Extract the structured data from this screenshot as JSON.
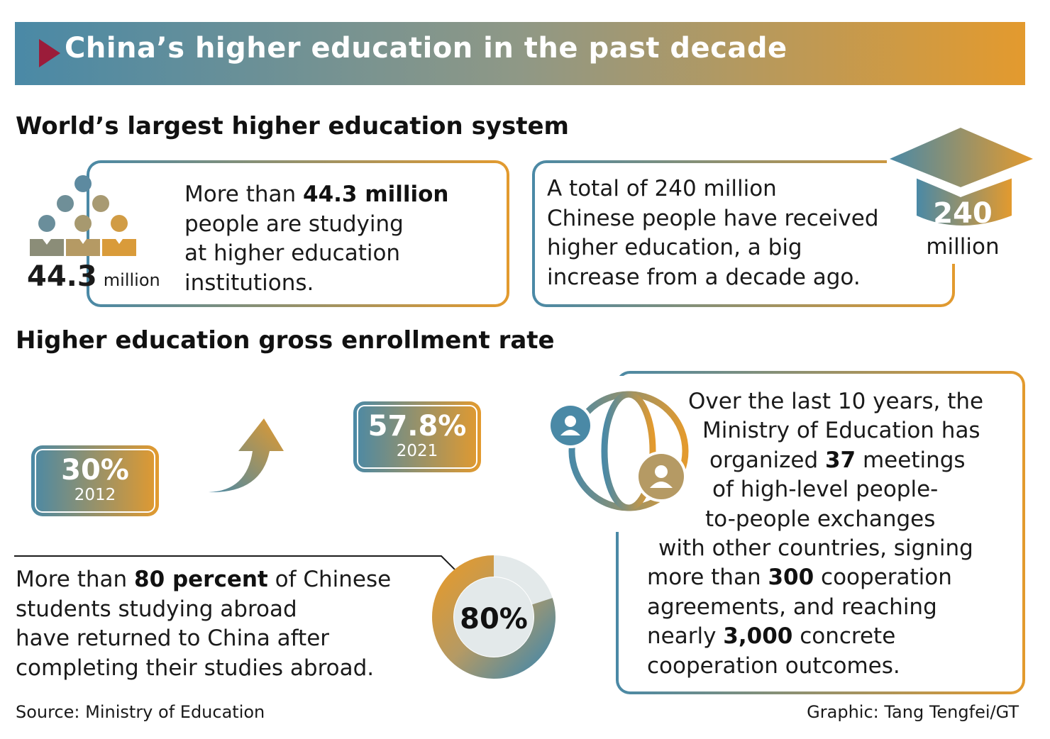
{
  "header": {
    "title": "China’s higher education in the past decade"
  },
  "section1": {
    "heading": "World’s largest higher education system",
    "card_students": {
      "stat_value": "44.3",
      "stat_unit": "million",
      "line1_pre": "More than ",
      "line1_bold": "44.3 million",
      "line2": "people are studying",
      "line3": "at higher education",
      "line4": "institutions."
    },
    "card_graduates": {
      "line1": "A total of 240 million",
      "line2": "Chinese people have received",
      "line3": "higher education, a big",
      "line4": "increase from a decade ago.",
      "cap_value": "240",
      "cap_unit": "million"
    }
  },
  "section2": {
    "heading": "Higher education gross enrollment rate",
    "rate_2012": {
      "value": "30%",
      "year": "2012"
    },
    "rate_2021": {
      "value": "57.8%",
      "year": "2021"
    },
    "returnees": {
      "line1_pre": "More than ",
      "line1_bold": "80 percent",
      "line1_post": " of Chinese",
      "line2": "students studying abroad",
      "line3": "have returned to China after",
      "line4": "completing their studies abroad.",
      "donut_label": "80%",
      "donut_fraction": 0.8
    },
    "exchanges": {
      "l1": "Over the last 10 years, the",
      "l2": "Ministry of Education has",
      "l3_pre": "organized ",
      "l3_bold": "37",
      "l3_post": " meetings",
      "l4": "of high-level people-",
      "l5": "to-people exchanges",
      "l6": "with other countries, signing",
      "l7_pre": "more than ",
      "l7_bold": "300",
      "l7_post": " cooperation",
      "l8": "agreements, and reaching",
      "l9_pre": "nearly ",
      "l9_bold": "3,000",
      "l9_post": " concrete",
      "l10": "cooperation outcomes."
    }
  },
  "footer": {
    "source": "Source: Ministry of Education",
    "credit": "Graphic: Tang Tengfei/GT"
  },
  "colors": {
    "blue": "#4a89a6",
    "gold": "#e39a2e",
    "maroon": "#9b1c3a",
    "donut_track": "#e3e9ea"
  }
}
